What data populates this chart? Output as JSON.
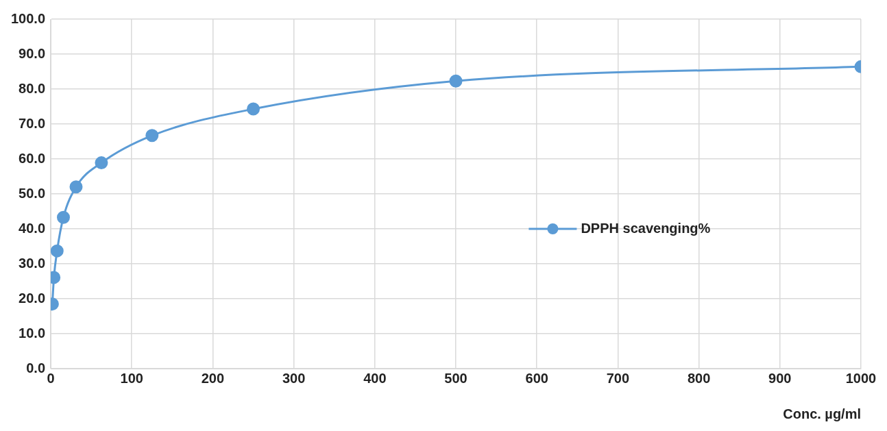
{
  "chart_data": {
    "type": "line",
    "xlabel": "Conc. µg/ml",
    "x": [
      1.95,
      3.9,
      7.8,
      15.6,
      31.25,
      62.5,
      125,
      250,
      500,
      1000
    ],
    "series": [
      {
        "name": "DPPH scavenging%",
        "color": "#5b9bd5",
        "values": [
          18.5,
          26.1,
          33.7,
          43.3,
          52.0,
          58.9,
          66.7,
          74.3,
          82.3,
          86.4
        ]
      }
    ],
    "xlim": [
      0,
      1000
    ],
    "xticks": [
      0,
      100,
      200,
      300,
      400,
      500,
      600,
      700,
      800,
      900,
      1000
    ],
    "ylim": [
      0,
      100
    ],
    "yticks": [
      {
        "value": 0,
        "label": "0.0"
      },
      {
        "value": 10,
        "label": "10.0"
      },
      {
        "value": 20,
        "label": "20.0"
      },
      {
        "value": 30,
        "label": "30.0"
      },
      {
        "value": 40,
        "label": "40.0"
      },
      {
        "value": 50,
        "label": "50.0"
      },
      {
        "value": 60,
        "label": "60.0"
      },
      {
        "value": 70,
        "label": "70.0"
      },
      {
        "value": 80,
        "label": "80.0"
      },
      {
        "value": 90,
        "label": "90.0"
      },
      {
        "value": 100,
        "label": "100.0"
      }
    ],
    "grid": true,
    "legend": "right",
    "marker": "circle",
    "line_style": "solid"
  }
}
